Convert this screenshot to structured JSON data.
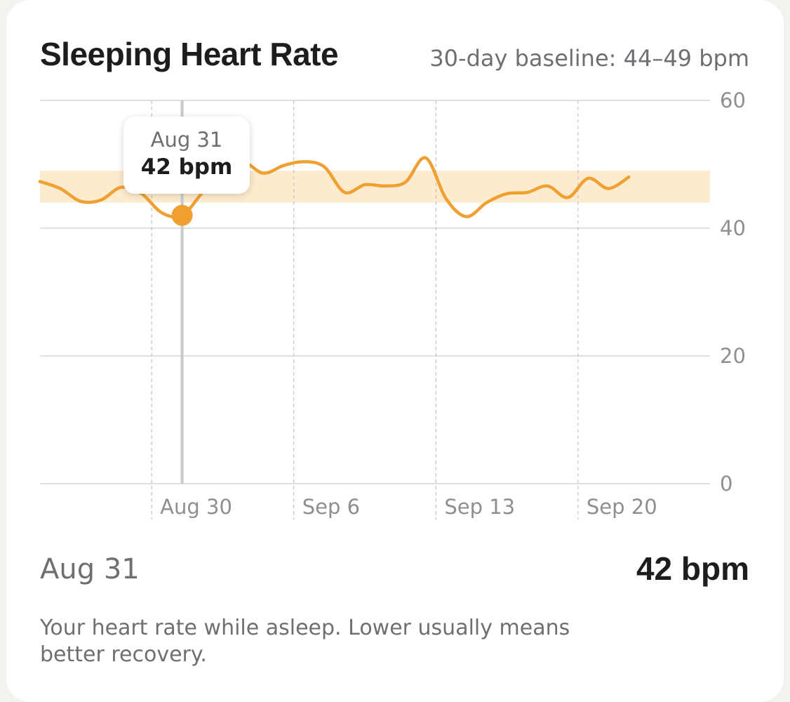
{
  "header": {
    "title": "Sleeping Heart Rate",
    "baseline_note": "30-day baseline: 44–49 bpm"
  },
  "tooltip": {
    "date": "Aug 31",
    "value": "42 bpm"
  },
  "selection": {
    "date": "Aug 31",
    "value": "42 bpm"
  },
  "description": "Your heart rate while asleep. Lower usually means better recovery.",
  "colors": {
    "line": "#f0a030",
    "baseline_band": "#fdebcf",
    "cursor": "#c7c9cc",
    "grid": "#d6d6d6"
  },
  "chart_data": {
    "type": "line",
    "title": "Sleeping Heart Rate",
    "xlabel": "",
    "ylabel": "",
    "unit": "bpm",
    "ylim": [
      0,
      60
    ],
    "y_ticks": [
      "0",
      "20",
      "40",
      "60"
    ],
    "x_ticks": [
      {
        "label": "Aug 30",
        "date": "2025-08-30"
      },
      {
        "label": "Sep 6",
        "date": "2025-09-06"
      },
      {
        "label": "Sep 13",
        "date": "2025-09-13"
      },
      {
        "label": "Sep 20",
        "date": "2025-09-20"
      }
    ],
    "x_range": [
      "2025-08-24",
      "2025-09-26"
    ],
    "baseline_band": [
      44,
      49
    ],
    "selected": {
      "date": "2025-08-31",
      "value": 42
    },
    "grid": true,
    "series": [
      {
        "values": [
          {
            "x": "2025-08-24",
            "y": 47.3
          },
          {
            "x": "2025-08-25",
            "y": 46.2
          },
          {
            "x": "2025-08-26",
            "y": 44.2
          },
          {
            "x": "2025-08-27",
            "y": 44.4
          },
          {
            "x": "2025-08-28",
            "y": 46.4
          },
          {
            "x": "2025-08-29",
            "y": 45.4
          },
          {
            "x": "2025-08-30",
            "y": 42.4
          },
          {
            "x": "2025-08-31",
            "y": 42.0
          },
          {
            "x": "2025-09-01",
            "y": 45.6
          },
          {
            "x": "2025-09-02",
            "y": 49.4
          },
          {
            "x": "2025-09-03",
            "y": 50.4
          },
          {
            "x": "2025-09-04",
            "y": 48.6
          },
          {
            "x": "2025-09-05",
            "y": 49.8
          },
          {
            "x": "2025-09-06",
            "y": 50.4
          },
          {
            "x": "2025-09-07",
            "y": 49.6
          },
          {
            "x": "2025-09-08",
            "y": 45.6
          },
          {
            "x": "2025-09-09",
            "y": 46.8
          },
          {
            "x": "2025-09-10",
            "y": 46.6
          },
          {
            "x": "2025-09-11",
            "y": 47.2
          },
          {
            "x": "2025-09-12",
            "y": 51.0
          },
          {
            "x": "2025-09-13",
            "y": 44.6
          },
          {
            "x": "2025-09-14",
            "y": 41.8
          },
          {
            "x": "2025-09-15",
            "y": 44.0
          },
          {
            "x": "2025-09-16",
            "y": 45.4
          },
          {
            "x": "2025-09-17",
            "y": 45.6
          },
          {
            "x": "2025-09-18",
            "y": 46.6
          },
          {
            "x": "2025-09-19",
            "y": 44.8
          },
          {
            "x": "2025-09-20",
            "y": 47.8
          },
          {
            "x": "2025-09-21",
            "y": 46.2
          },
          {
            "x": "2025-09-22",
            "y": 48.0
          }
        ]
      }
    ]
  }
}
